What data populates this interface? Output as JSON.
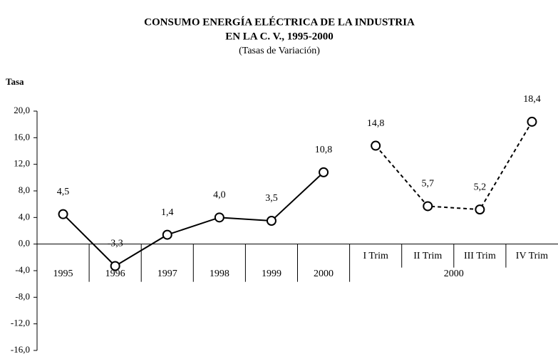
{
  "chart_data": {
    "type": "line",
    "title": [
      "CONSUMO ENERGÍA ELÉCTRICA DE LA INDUSTRIA",
      "EN LA C. V., 1995-2000"
    ],
    "subtitle": "(Tasas de Variación)",
    "y_label": "Tasa",
    "categories": [
      "1995",
      "1996",
      "1997",
      "1998",
      "1999",
      "2000",
      "I Trim",
      "II Trim",
      "III Trim",
      "IV Trim"
    ],
    "groups": [
      {
        "label": "2000",
        "span": [
          6,
          9
        ]
      }
    ],
    "series": [
      {
        "color": "#000000",
        "dash": false,
        "values": [
          4.5,
          -3.3,
          1.4,
          4.0,
          3.5,
          10.8,
          null,
          null,
          null,
          null
        ],
        "value_labels": [
          "4,5",
          "-3,3",
          "1,4",
          "4,0",
          "3,5",
          "10,8",
          null,
          null,
          null,
          null
        ]
      },
      {
        "color": "#000000",
        "dash": true,
        "values": [
          null,
          null,
          null,
          null,
          null,
          null,
          14.8,
          5.7,
          5.2,
          18.4
        ],
        "value_labels": [
          null,
          null,
          null,
          null,
          null,
          null,
          "14,8",
          "5,7",
          "5,2",
          "18,4"
        ]
      }
    ],
    "ylim": [
      -16,
      20
    ],
    "yticks": [
      {
        "value": 20,
        "label": "20,0"
      },
      {
        "value": 16,
        "label": "16,0"
      },
      {
        "value": 12,
        "label": "12,0"
      },
      {
        "value": 8,
        "label": "8,0"
      },
      {
        "value": 4,
        "label": "4,0"
      },
      {
        "value": 0,
        "label": "0,0"
      },
      {
        "value": -4,
        "label": "-4,0"
      },
      {
        "value": -8,
        "label": "-8,0"
      },
      {
        "value": -12,
        "label": "-12,0"
      },
      {
        "value": -16,
        "label": "-16,0"
      }
    ]
  }
}
